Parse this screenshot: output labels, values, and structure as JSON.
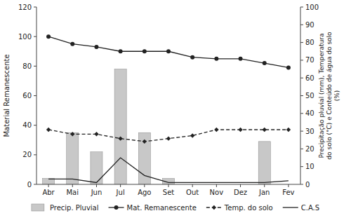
{
  "chart_data": {
    "type": "bar",
    "categories": [
      "Abr",
      "Mai",
      "Jun",
      "Jul",
      "Ago",
      "Set",
      "Out",
      "Nov",
      "Dez",
      "Jan",
      "Fev"
    ],
    "series": [
      {
        "name": "Precip. Pluvial",
        "type": "bar",
        "color": "#c8c8c8",
        "values": [
          4,
          35,
          22,
          78,
          35,
          4,
          0,
          0,
          0,
          29,
          0
        ]
      },
      {
        "name": "Mat. Remanescente",
        "type": "line",
        "color": "#222222",
        "marker": "circle",
        "line_style": "solid",
        "values": [
          100,
          95,
          93,
          90,
          90,
          90,
          86,
          85,
          85,
          82,
          79
        ]
      },
      {
        "name": "Temp. do solo",
        "type": "line",
        "color": "#222222",
        "marker": "diamond",
        "line_style": "dashed",
        "values": [
          37,
          34,
          34,
          31,
          29,
          31,
          33,
          37,
          37,
          37,
          37
        ]
      },
      {
        "name": "C.A.S",
        "type": "line",
        "color": "#222222",
        "line_style": "solid",
        "axis": "y2",
        "values": [
          3,
          3,
          1,
          15,
          5,
          1,
          1,
          1,
          1,
          1,
          2
        ]
      }
    ],
    "ylim": [
      0,
      120
    ],
    "yticks": [
      0,
      20,
      40,
      60,
      80,
      100,
      120
    ],
    "y2lim": [
      0,
      100
    ],
    "y2ticks": [
      0,
      10,
      20,
      30,
      40,
      50,
      60,
      70,
      80,
      90,
      100
    ],
    "ylabel": "Material Remanescente",
    "y2label": "Precipitação pluvial (mm), Temperatura\ndo solo (°C) e Conteúdo de água do solo\n(%)",
    "grid": false,
    "legend": "bottom"
  }
}
